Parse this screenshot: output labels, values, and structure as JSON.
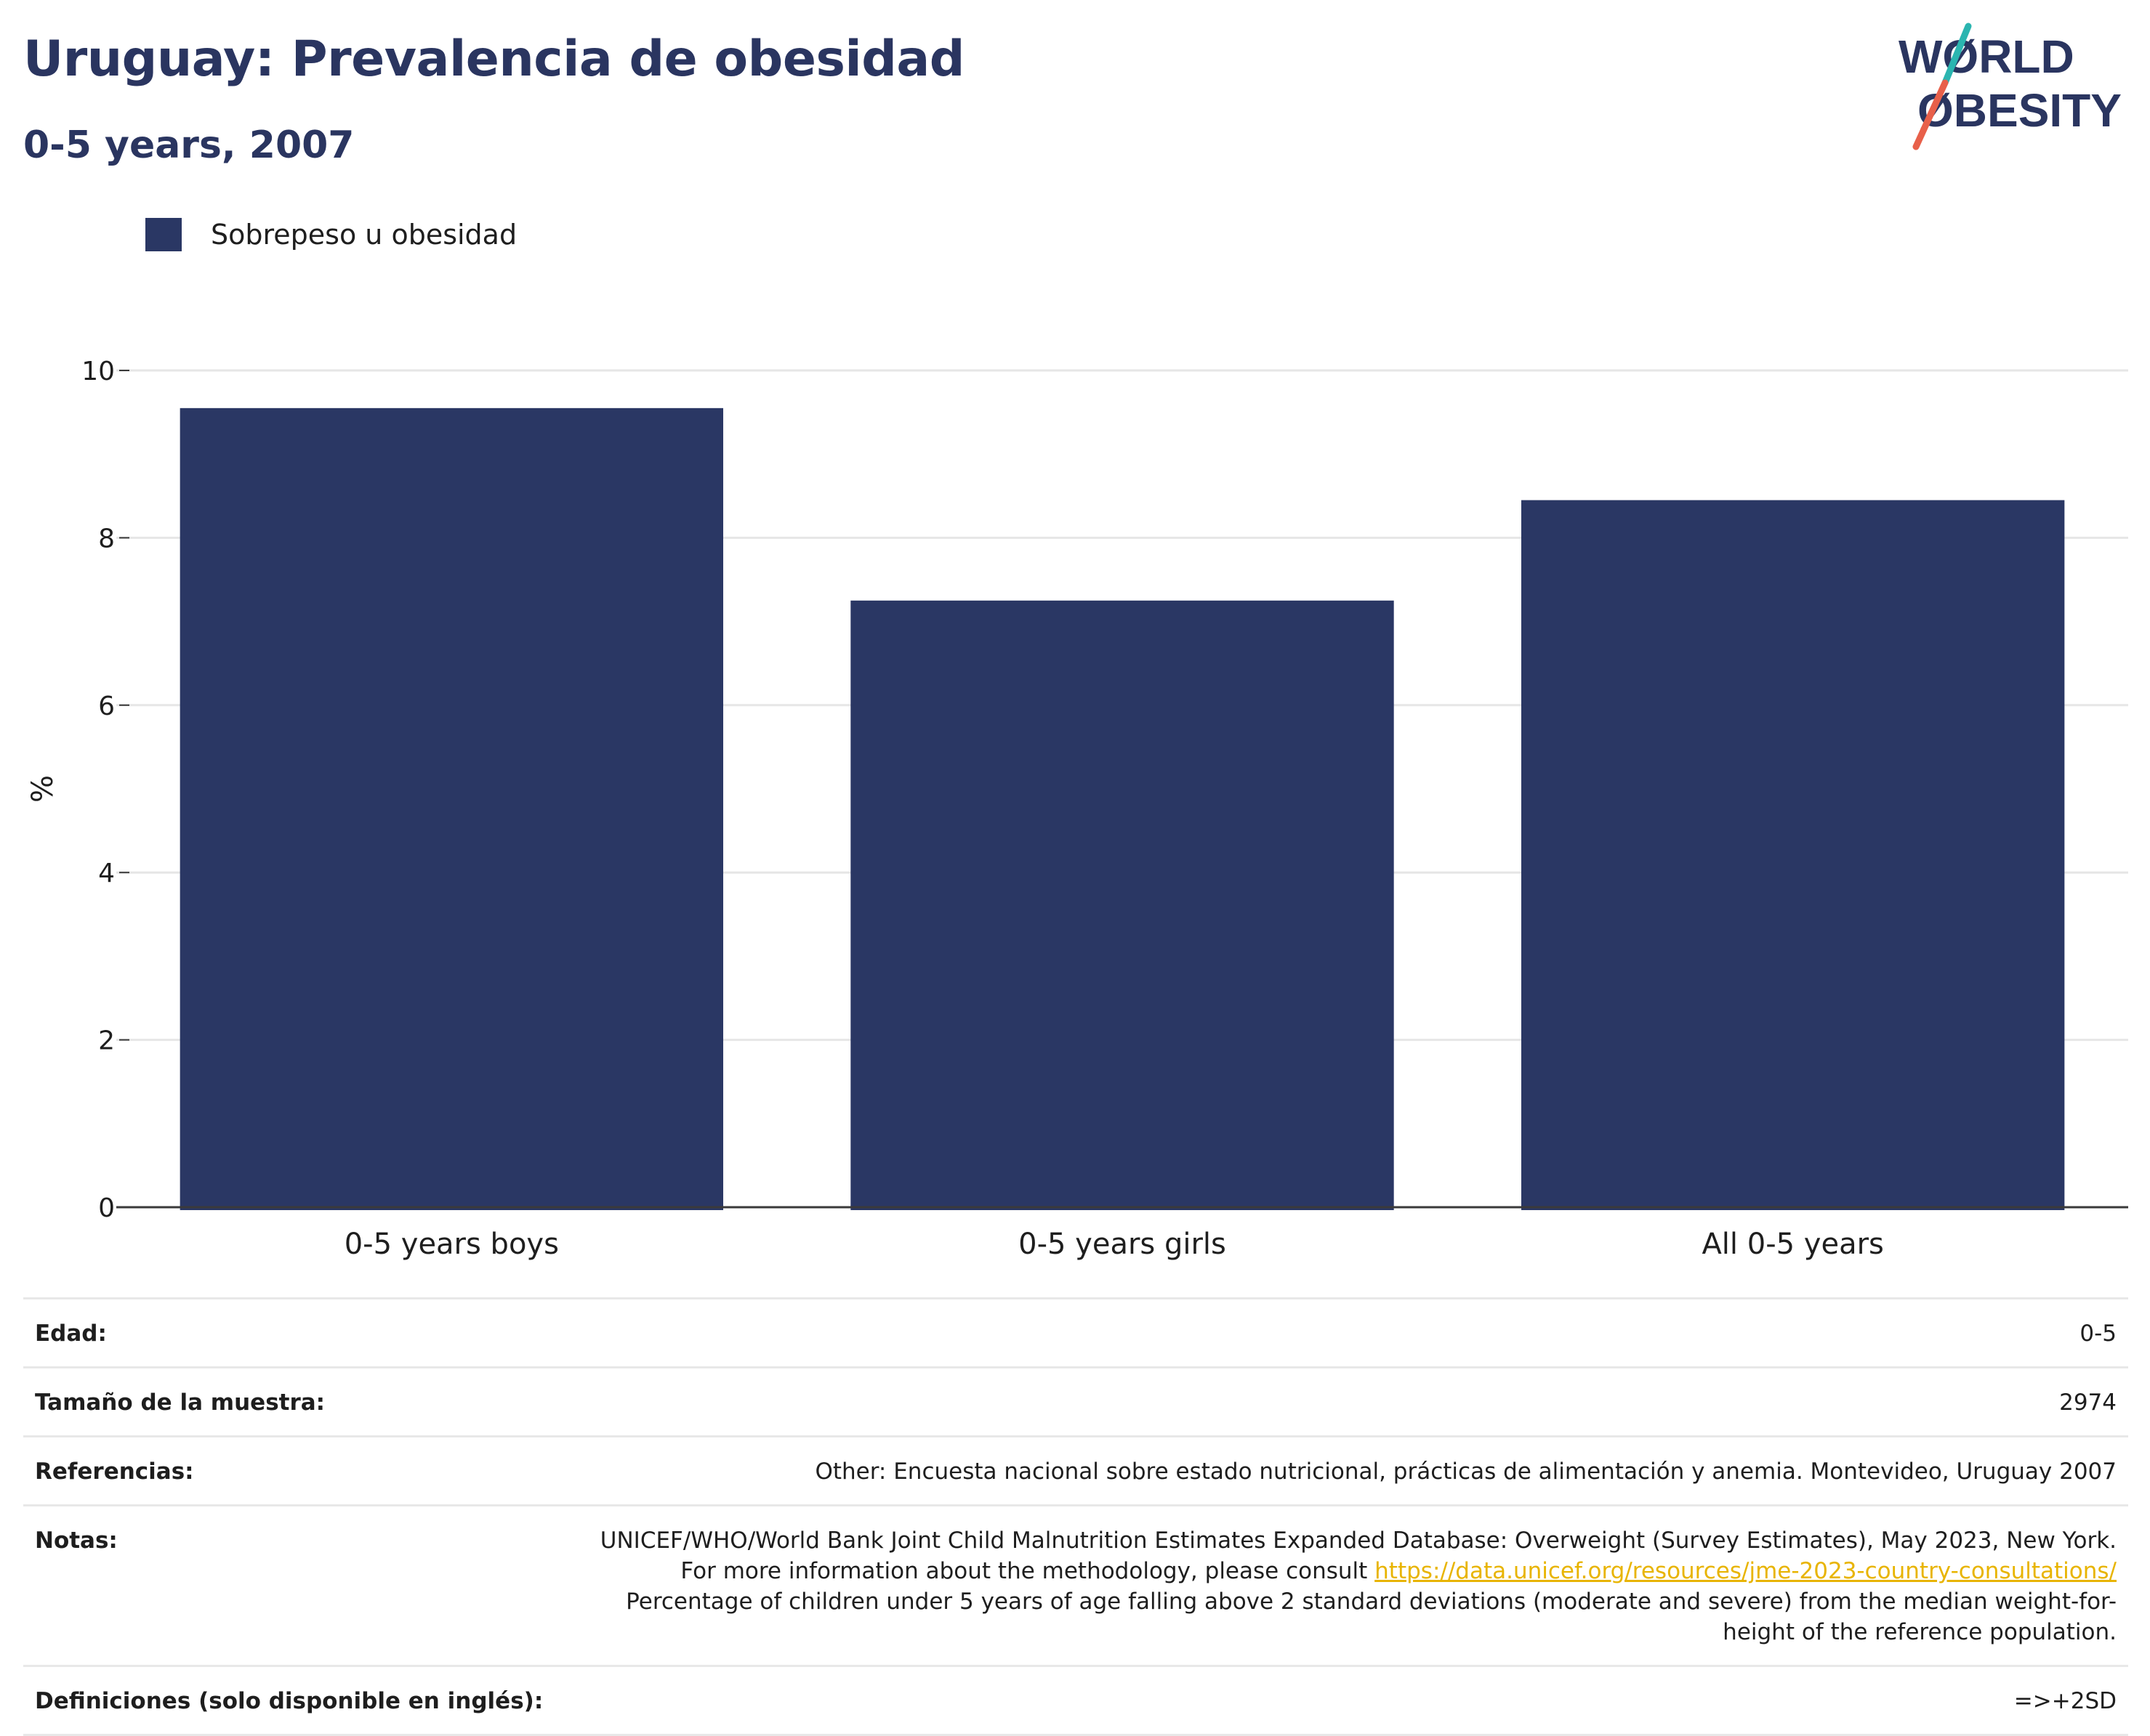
{
  "header": {
    "title": "Uruguay: Prevalencia de obesidad",
    "subtitle": "0-5 years, 2007"
  },
  "logo": {
    "line1": "WØRLD",
    "line2": "ØBESITY",
    "colors": {
      "text": "#2a3560",
      "teal": "#2bb5b0",
      "coral": "#e8604a"
    }
  },
  "colors": {
    "bar": "#2a3764",
    "grid": "#e6e6e6",
    "axis": "#3a3a3a",
    "link": "#e8b400"
  },
  "chart_data": {
    "type": "bar",
    "categories": [
      "0-5 years boys",
      "0-5 years girls",
      "All 0-5 years"
    ],
    "series": [
      {
        "name": "Sobrepeso u obesidad",
        "values": [
          9.55,
          7.25,
          8.45
        ]
      }
    ],
    "ylabel": "%",
    "xlabel": "",
    "ylim": [
      0,
      10
    ],
    "yticks": [
      0,
      2,
      4,
      6,
      8,
      10
    ],
    "grid": true,
    "legend_position": "top-left"
  },
  "meta": {
    "rows": [
      {
        "key": "Edad:",
        "value": "0-5"
      },
      {
        "key": "Tamaño de la muestra:",
        "value": "2974"
      },
      {
        "key": "Referencias:",
        "value": "Other: Encuesta nacional sobre estado nutricional, prácticas de alimentación y anemia. Montevideo, Uruguay 2007"
      },
      {
        "key": "Notas:",
        "value_before": "UNICEF/WHO/World Bank Joint Child Malnutrition Estimates Expanded Database: Overweight (Survey Estimates), May 2023, New York. For more information about the methodology, please consult ",
        "link": "https://data.unicef.org/resources/jme-2023-country-consultations/",
        "value_after": " Percentage of children under 5 years of age falling above 2 standard deviations (moderate and severe) from the median weight-for-height of the reference population."
      },
      {
        "key": "Definiciones (solo disponible en inglés):",
        "value": "=>+2SD"
      }
    ]
  }
}
